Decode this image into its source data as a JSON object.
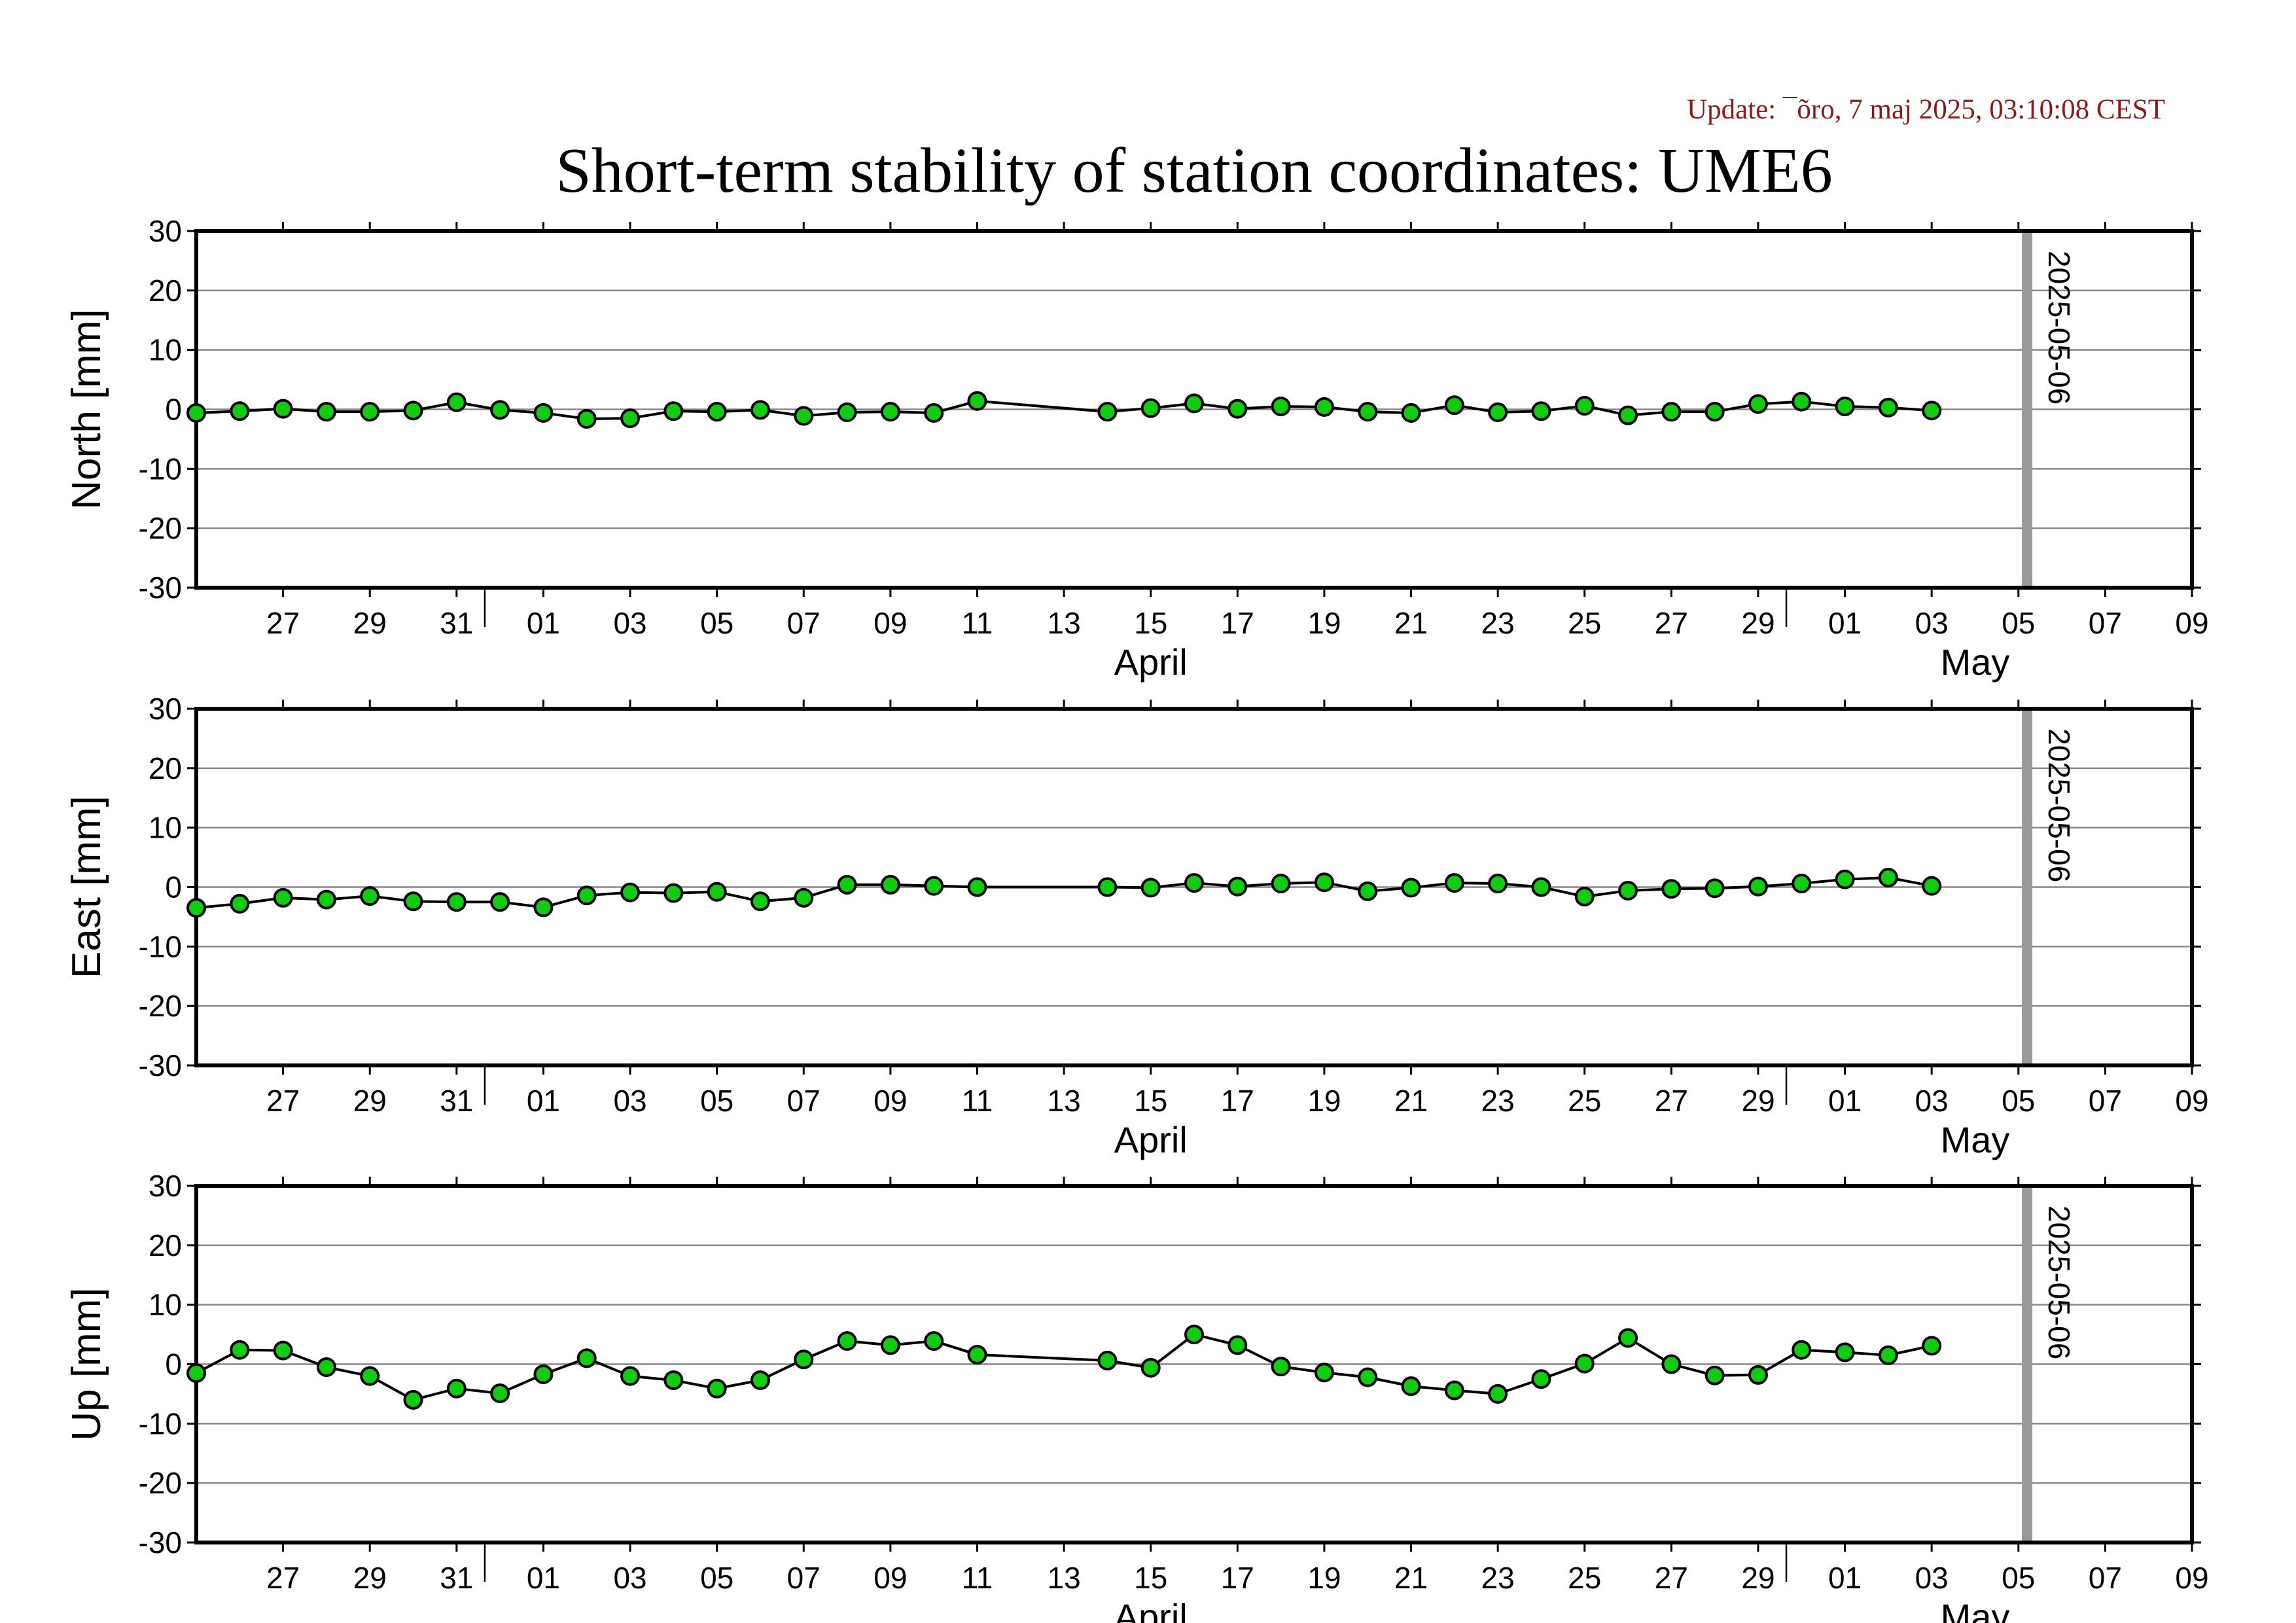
{
  "header": {
    "update": "Update: ¯õro, 7 maj 2025, 03:10:08 CEST",
    "title": "Short-term stability of station coordinates: UME6"
  },
  "chart_data": [
    {
      "type": "line",
      "ylabel": "North [mm]",
      "ylim": [
        -30,
        30
      ],
      "yticks": [
        30,
        20,
        10,
        0,
        -10,
        -20,
        -30
      ],
      "xlim": [
        "2025-03-25",
        "2025-05-10"
      ],
      "xticks": [
        "27",
        "29",
        "31",
        "01",
        "03",
        "05",
        "07",
        "09",
        "11",
        "13",
        "15",
        "17",
        "19",
        "21",
        "23",
        "25",
        "27",
        "29",
        "01",
        "03",
        "05",
        "07",
        "09"
      ],
      "month_labels": [
        "April",
        "May"
      ],
      "marker_label": "2025-05-06",
      "marker_date": "2025-05-06",
      "grid": true,
      "series": [
        {
          "color": "#11cc11",
          "x": [
            "2025-03-25",
            "2025-03-26",
            "2025-03-27",
            "2025-03-28",
            "2025-03-29",
            "2025-03-30",
            "2025-03-31",
            "2025-04-01",
            "2025-04-02",
            "2025-04-03",
            "2025-04-04",
            "2025-04-05",
            "2025-04-06",
            "2025-04-07",
            "2025-04-08",
            "2025-04-09",
            "2025-04-10",
            "2025-04-11",
            "2025-04-12",
            "2025-04-15",
            "2025-04-16",
            "2025-04-17",
            "2025-04-18",
            "2025-04-19",
            "2025-04-20",
            "2025-04-21",
            "2025-04-22",
            "2025-04-23",
            "2025-04-24",
            "2025-04-25",
            "2025-04-26",
            "2025-04-27",
            "2025-04-28",
            "2025-04-29",
            "2025-04-30",
            "2025-05-01",
            "2025-05-02",
            "2025-05-03",
            "2025-05-04"
          ],
          "y": [
            -0.6,
            -0.3,
            0.1,
            -0.4,
            -0.4,
            -0.2,
            1.2,
            -0.1,
            -0.6,
            -1.6,
            -1.5,
            -0.3,
            -0.4,
            -0.1,
            -1.1,
            -0.5,
            -0.4,
            -0.6,
            1.4,
            -0.4,
            0.2,
            1.0,
            0.1,
            0.5,
            0.4,
            -0.4,
            -0.6,
            0.7,
            -0.5,
            -0.3,
            0.6,
            -1.0,
            -0.4,
            -0.4,
            0.9,
            1.3,
            0.5,
            0.3,
            -0.2
          ]
        }
      ]
    },
    {
      "type": "line",
      "ylabel": "East [mm]",
      "ylim": [
        -30,
        30
      ],
      "yticks": [
        30,
        20,
        10,
        0,
        -10,
        -20,
        -30
      ],
      "xlim": [
        "2025-03-25",
        "2025-05-10"
      ],
      "xticks": [
        "27",
        "29",
        "31",
        "01",
        "03",
        "05",
        "07",
        "09",
        "11",
        "13",
        "15",
        "17",
        "19",
        "21",
        "23",
        "25",
        "27",
        "29",
        "01",
        "03",
        "05",
        "07",
        "09"
      ],
      "month_labels": [
        "April",
        "May"
      ],
      "marker_label": "2025-05-06",
      "marker_date": "2025-05-06",
      "grid": true,
      "series": [
        {
          "color": "#11cc11",
          "x": [
            "2025-03-25",
            "2025-03-26",
            "2025-03-27",
            "2025-03-28",
            "2025-03-29",
            "2025-03-30",
            "2025-03-31",
            "2025-04-01",
            "2025-04-02",
            "2025-04-03",
            "2025-04-04",
            "2025-04-05",
            "2025-04-06",
            "2025-04-07",
            "2025-04-08",
            "2025-04-09",
            "2025-04-10",
            "2025-04-11",
            "2025-04-12",
            "2025-04-15",
            "2025-04-16",
            "2025-04-17",
            "2025-04-18",
            "2025-04-19",
            "2025-04-20",
            "2025-04-21",
            "2025-04-22",
            "2025-04-23",
            "2025-04-24",
            "2025-04-25",
            "2025-04-26",
            "2025-04-27",
            "2025-04-28",
            "2025-04-29",
            "2025-04-30",
            "2025-05-01",
            "2025-05-02",
            "2025-05-03",
            "2025-05-04"
          ],
          "y": [
            -3.5,
            -2.8,
            -1.8,
            -2.1,
            -1.5,
            -2.4,
            -2.5,
            -2.5,
            -3.4,
            -1.4,
            -0.9,
            -1.0,
            -0.8,
            -2.4,
            -1.8,
            0.4,
            0.4,
            0.2,
            0.0,
            0.0,
            -0.1,
            0.7,
            0.1,
            0.6,
            0.8,
            -0.7,
            -0.1,
            0.7,
            0.6,
            0.0,
            -1.6,
            -0.6,
            -0.3,
            -0.2,
            0.1,
            0.6,
            1.3,
            1.6,
            0.2
          ]
        }
      ]
    },
    {
      "type": "line",
      "ylabel": "Up [mm]",
      "ylim": [
        -30,
        30
      ],
      "yticks": [
        30,
        20,
        10,
        0,
        -10,
        -20,
        -30
      ],
      "xlim": [
        "2025-03-25",
        "2025-05-10"
      ],
      "xticks": [
        "27",
        "29",
        "31",
        "01",
        "03",
        "05",
        "07",
        "09",
        "11",
        "13",
        "15",
        "17",
        "19",
        "21",
        "23",
        "25",
        "27",
        "29",
        "01",
        "03",
        "05",
        "07",
        "09"
      ],
      "month_labels": [
        "April",
        "May"
      ],
      "marker_label": "2025-05-06",
      "marker_date": "2025-05-06",
      "grid": true,
      "series": [
        {
          "color": "#11cc11",
          "x": [
            "2025-03-25",
            "2025-03-26",
            "2025-03-27",
            "2025-03-28",
            "2025-03-29",
            "2025-03-30",
            "2025-03-31",
            "2025-04-01",
            "2025-04-02",
            "2025-04-03",
            "2025-04-04",
            "2025-04-05",
            "2025-04-06",
            "2025-04-07",
            "2025-04-08",
            "2025-04-09",
            "2025-04-10",
            "2025-04-11",
            "2025-04-12",
            "2025-04-15",
            "2025-04-16",
            "2025-04-17",
            "2025-04-18",
            "2025-04-19",
            "2025-04-20",
            "2025-04-21",
            "2025-04-22",
            "2025-04-23",
            "2025-04-24",
            "2025-04-25",
            "2025-04-26",
            "2025-04-27",
            "2025-04-28",
            "2025-04-29",
            "2025-04-30",
            "2025-05-01",
            "2025-05-02",
            "2025-05-03",
            "2025-05-04"
          ],
          "y": [
            -1.5,
            2.4,
            2.3,
            -0.5,
            -2.0,
            -6.0,
            -4.1,
            -4.9,
            -1.7,
            1.0,
            -2.0,
            -2.7,
            -4.1,
            -2.7,
            0.8,
            3.9,
            3.2,
            3.9,
            1.6,
            0.6,
            -0.6,
            5.0,
            3.2,
            -0.4,
            -1.4,
            -2.2,
            -3.7,
            -4.4,
            -5.0,
            -2.5,
            0.1,
            4.4,
            0.0,
            -1.9,
            -1.8,
            2.4,
            2.0,
            1.5,
            3.1
          ]
        }
      ]
    }
  ]
}
